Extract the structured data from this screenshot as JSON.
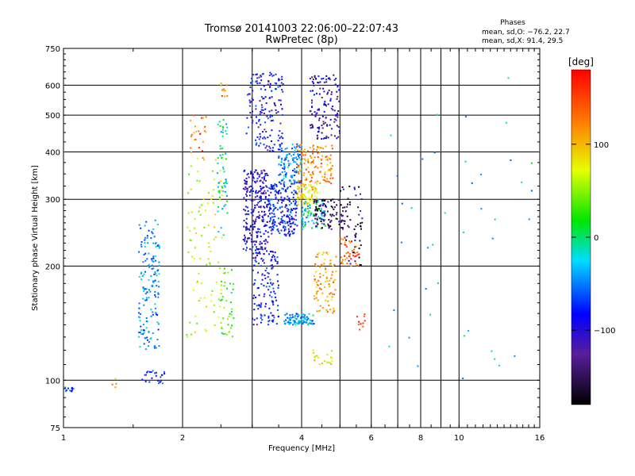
{
  "chart_data": {
    "type": "scatter",
    "title": "Tromsø 20141003 22:06:00–22:07:43",
    "subtitle": "RwPretec (8p)",
    "xlabel": "Frequency [MHz]",
    "ylabel": "Stationary phase Virtual Height [km]",
    "x_scale": "log",
    "y_scale": "log",
    "xlim": [
      1,
      16
    ],
    "ylim": [
      75,
      750
    ],
    "x_ticks": [
      1,
      2,
      4,
      6,
      8,
      10,
      16
    ],
    "x_tick_labels": [
      "1",
      "2",
      "4",
      "6",
      "8",
      "10",
      "16"
    ],
    "x_minor_gridlines": [
      3,
      5,
      7,
      9
    ],
    "y_ticks": [
      75,
      100,
      200,
      300,
      400,
      500,
      600,
      750
    ],
    "y_tick_labels": [
      "75",
      "100",
      "200",
      "300",
      "400",
      "500",
      "600",
      "750"
    ],
    "grid": true,
    "phase_info": {
      "heading": "Phases",
      "line_o": "mean, sd,O: −76.2, 22.7",
      "line_x": "mean, sd,X:  91.4, 29.5"
    },
    "colorbar": {
      "label": "[deg]",
      "range": [
        -180,
        180
      ],
      "ticks": [
        100,
        0,
        -100
      ],
      "tick_labels": [
        "100",
        "0",
        "−100"
      ],
      "colormap": "rainbow"
    },
    "clusters": [
      {
        "x": [
          1.0,
          1.06
        ],
        "y": [
          93,
          96
        ],
        "phase": -80,
        "count": 12
      },
      {
        "x": [
          1.32,
          1.36
        ],
        "y": [
          92,
          105
        ],
        "phase": 110,
        "count": 4
      },
      {
        "x": [
          1.55,
          1.75
        ],
        "y": [
          120,
          265
        ],
        "phase": -55,
        "count": 160
      },
      {
        "x": [
          1.58,
          1.8
        ],
        "y": [
          98,
          106
        ],
        "phase": -90,
        "count": 25
      },
      {
        "x": [
          2.05,
          2.55
        ],
        "y": [
          130,
          400
        ],
        "phase": 60,
        "count": 90
      },
      {
        "x": [
          2.08,
          2.3
        ],
        "y": [
          380,
          500
        ],
        "phase": 130,
        "count": 25
      },
      {
        "x": [
          2.45,
          2.6
        ],
        "y": [
          240,
          500
        ],
        "phase": -20,
        "count": 60
      },
      {
        "x": [
          2.5,
          2.7
        ],
        "y": [
          130,
          200
        ],
        "phase": 20,
        "count": 40
      },
      {
        "x": [
          2.5,
          2.6
        ],
        "y": [
          560,
          620
        ],
        "phase": 130,
        "count": 10
      },
      {
        "x": [
          2.85,
          3.3
        ],
        "y": [
          220,
          360
        ],
        "phase": -110,
        "count": 260
      },
      {
        "x": [
          3.0,
          3.5
        ],
        "y": [
          140,
          220
        ],
        "phase": -100,
        "count": 140
      },
      {
        "x": [
          2.9,
          3.6
        ],
        "y": [
          400,
          650
        ],
        "phase": -100,
        "count": 160
      },
      {
        "x": [
          3.3,
          3.9
        ],
        "y": [
          240,
          330
        ],
        "phase": -95,
        "count": 220
      },
      {
        "x": [
          3.6,
          4.3
        ],
        "y": [
          140,
          150
        ],
        "phase": -50,
        "count": 90
      },
      {
        "x": [
          3.5,
          4.0
        ],
        "y": [
          330,
          420
        ],
        "phase": -60,
        "count": 120
      },
      {
        "x": [
          3.9,
          4.4
        ],
        "y": [
          290,
          330
        ],
        "phase": 90,
        "count": 80
      },
      {
        "x": [
          3.9,
          4.8
        ],
        "y": [
          330,
          420
        ],
        "phase": 120,
        "count": 120
      },
      {
        "x": [
          4.3,
          4.9
        ],
        "y": [
          150,
          220
        ],
        "phase": 110,
        "count": 90
      },
      {
        "x": [
          4.0,
          4.6
        ],
        "y": [
          250,
          300
        ],
        "phase": -30,
        "count": 80
      },
      {
        "x": [
          4.3,
          5.1
        ],
        "y": [
          250,
          300
        ],
        "phase": -150,
        "count": 90
      },
      {
        "x": [
          4.2,
          5.0
        ],
        "y": [
          430,
          640
        ],
        "phase": -120,
        "count": 130
      },
      {
        "x": [
          4.2,
          4.8
        ],
        "y": [
          110,
          120
        ],
        "phase": 80,
        "count": 20
      },
      {
        "x": [
          5.0,
          5.7
        ],
        "y": [
          200,
          330
        ],
        "phase": -150,
        "count": 60
      },
      {
        "x": [
          5.0,
          5.6
        ],
        "y": [
          200,
          240
        ],
        "phase": 140,
        "count": 40
      },
      {
        "x": [
          5.5,
          5.8
        ],
        "y": [
          130,
          150
        ],
        "phase": 150,
        "count": 10
      },
      {
        "x": [
          6.2,
          15.5
        ],
        "y": [
          95,
          640
        ],
        "phase": -40,
        "count": 40
      }
    ]
  }
}
